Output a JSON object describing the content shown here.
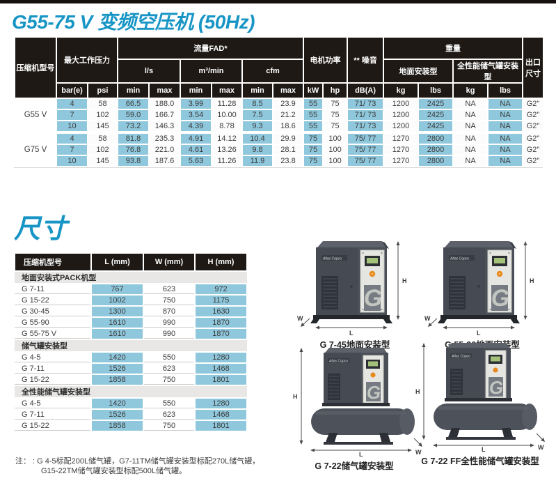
{
  "page": {
    "title": "G55-75 V 变频空压机 (50Hz)",
    "section_title": "尺寸"
  },
  "colors": {
    "accent_blue": "#1795C5",
    "header_dark": "#1E1915",
    "cell_blue": "#8FC7DC",
    "group_gray": "#E8E7E5"
  },
  "spec_table": {
    "headers": {
      "model": "压缩机型号",
      "max_pressure": "最大工作压力",
      "flow": "流量FAD*",
      "motor_power": "电机功率",
      "noise": "** 噪音",
      "weight": "重量",
      "outlet": "出口尺寸",
      "flow_units": [
        "l/s",
        "m³/min",
        "cfm"
      ],
      "weight_types": [
        "地面安装型",
        "全性能储气罐安装型"
      ],
      "sub": [
        "bar(e)",
        "psi",
        "min",
        "max",
        "min",
        "max",
        "min",
        "max",
        "kW",
        "hp",
        "dB(A)",
        "kg",
        "lbs",
        "kg",
        "lbs"
      ]
    },
    "groups": [
      {
        "model": "G55 V",
        "rows": [
          [
            "4",
            "58",
            "66.5",
            "188.0",
            "3.99",
            "11.28",
            "8.5",
            "23.9",
            "55",
            "75",
            "71/ 73",
            "1200",
            "2425",
            "NA",
            "NA",
            "G2\""
          ],
          [
            "7",
            "102",
            "59.0",
            "166.7",
            "3.54",
            "10.00",
            "7.5",
            "21.2",
            "55",
            "75",
            "71/ 73",
            "1200",
            "2425",
            "NA",
            "NA",
            "G2\""
          ],
          [
            "10",
            "145",
            "73.2",
            "146.3",
            "4.39",
            "8.78",
            "9.3",
            "18.6",
            "55",
            "75",
            "71/ 73",
            "1200",
            "2425",
            "NA",
            "NA",
            "G2\""
          ]
        ]
      },
      {
        "model": "G75 V",
        "rows": [
          [
            "4",
            "58",
            "81.8",
            "235.3",
            "4.91",
            "14.12",
            "10.4",
            "29.9",
            "75",
            "100",
            "75/ 77",
            "1270",
            "2800",
            "NA",
            "NA",
            "G2\""
          ],
          [
            "7",
            "102",
            "76.8",
            "221.0",
            "4.61",
            "13.26",
            "9.8",
            "28.1",
            "75",
            "100",
            "75/ 77",
            "1270",
            "2800",
            "NA",
            "NA",
            "G2\""
          ],
          [
            "10",
            "145",
            "93.8",
            "187.6",
            "5.63",
            "11.26",
            "11.9",
            "23.8",
            "75",
            "100",
            "75/ 77",
            "1270",
            "2800",
            "NA",
            "NA",
            "G2\""
          ]
        ]
      }
    ]
  },
  "dims_table": {
    "headers": [
      "压缩机型号",
      "L (mm)",
      "W (mm)",
      "H (mm)"
    ],
    "sections": [
      {
        "group": "地面安装式PACK机型",
        "rows": [
          [
            "G 7-11",
            "767",
            "623",
            "972"
          ],
          [
            "G 15-22",
            "1002",
            "750",
            "1175"
          ],
          [
            "G 30-45",
            "1300",
            "870",
            "1630"
          ],
          [
            "G 55-90",
            "1610",
            "990",
            "1870"
          ],
          [
            "G 55-75 V",
            "1610",
            "990",
            "1870"
          ]
        ]
      },
      {
        "group": "储气罐安装型",
        "rows": [
          [
            "G 4-5",
            "1420",
            "550",
            "1280"
          ],
          [
            "G 7-11",
            "1526",
            "623",
            "1468"
          ],
          [
            "G 15-22",
            "1858",
            "750",
            "1801"
          ]
        ]
      },
      {
        "group": "全性能储气罐安装型",
        "rows": [
          [
            "G 4-5",
            "1420",
            "550",
            "1280"
          ],
          [
            "G 7-11",
            "1526",
            "623",
            "1468"
          ],
          [
            "G 15-22",
            "1858",
            "750",
            "1801"
          ]
        ]
      }
    ],
    "note_line1": "注： : G 4-5标配200L储气罐，G7-11TM储气罐安装型标配270L储气罐，",
    "note_line2": "G15-22TM储气罐安装型标配500L储气罐。"
  },
  "dim_labels": {
    "height": "H",
    "length": "L",
    "width": "W"
  },
  "products": [
    {
      "caption": "G 7-45地面安装型",
      "type": "floor",
      "brand": "Atlas Copco",
      "panel_letter": "G"
    },
    {
      "caption": "G 55-90地面安装型",
      "type": "floor",
      "brand": "Atlas Copco",
      "panel_letter": "G"
    },
    {
      "caption": "G 7-22储气罐安装型",
      "type": "tank",
      "brand": "Atlas Copco",
      "panel_letter": "G"
    },
    {
      "caption": "G 7-22 FF全性能储气罐安装型",
      "type": "tank",
      "brand": "Atlas Copco",
      "panel_letter": "G"
    }
  ]
}
